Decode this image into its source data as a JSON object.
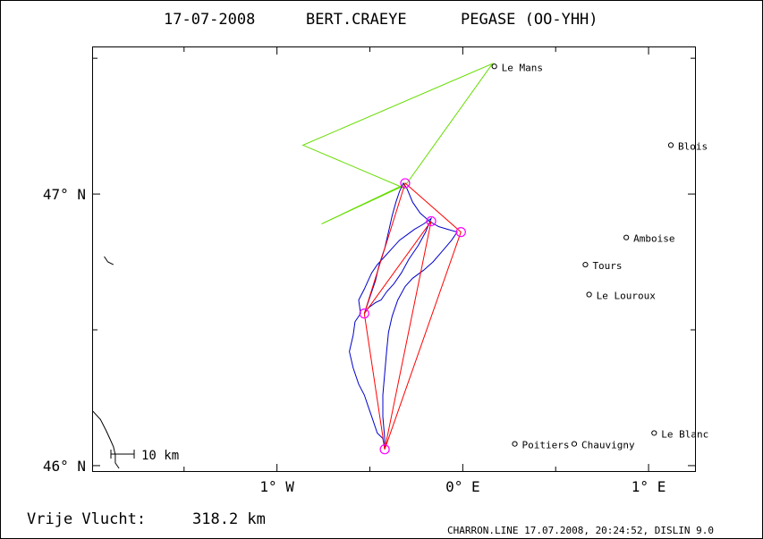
{
  "title": {
    "date": "17-07-2008",
    "pilot": "BERT.CRAEYE",
    "glider": "PEGASE (OO-YHH)"
  },
  "axes": {
    "y_ticks": [
      {
        "lat": 47.0,
        "label": "47° N"
      },
      {
        "lat": 46.0,
        "label": "46° N"
      }
    ],
    "x_ticks": [
      {
        "lon": -1.0,
        "label": "1° W"
      },
      {
        "lon": 0.0,
        "label": "0° E"
      },
      {
        "lon": 1.0,
        "label": "1° E"
      }
    ],
    "lon_range": [
      -1.99,
      1.25
    ],
    "lat_range": [
      45.98,
      47.54
    ]
  },
  "scale_bar": {
    "label": "10 km"
  },
  "distance": {
    "label": "Vrije Vlucht:",
    "value": "318.2 km"
  },
  "footer": "CHARRON.LINE 17.07.2008, 20:24:52, DISLIN 9.0",
  "cities": [
    {
      "name": "Le Mans",
      "lon": 0.17,
      "lat": 47.47
    },
    {
      "name": "Blois",
      "lon": 1.12,
      "lat": 47.18
    },
    {
      "name": "Amboise",
      "lon": 0.88,
      "lat": 46.84
    },
    {
      "name": "Tours",
      "lon": 0.66,
      "lat": 46.74
    },
    {
      "name": "Le Louroux",
      "lon": 0.68,
      "lat": 46.63
    },
    {
      "name": "Poitiers",
      "lon": 0.28,
      "lat": 46.08
    },
    {
      "name": "Chauvigny",
      "lon": 0.6,
      "lat": 46.08
    },
    {
      "name": "Le Blanc",
      "lon": 1.03,
      "lat": 46.12
    }
  ],
  "colors": {
    "track": "#0000cc",
    "triangle": "#ff0000",
    "declared": "#66dd00",
    "turnpoint": "#ff00ff",
    "coast": "#000000",
    "frame": "#000000"
  },
  "turnpoints": [
    {
      "lon": -0.42,
      "lat": 46.06
    },
    {
      "lon": -0.53,
      "lat": 46.56
    },
    {
      "lon": -0.31,
      "lat": 47.04
    },
    {
      "lon": -0.17,
      "lat": 46.9
    },
    {
      "lon": -0.01,
      "lat": 46.86
    }
  ],
  "triangle_route": [
    {
      "lon": -0.42,
      "lat": 46.06
    },
    {
      "lon": -0.53,
      "lat": 46.56
    },
    {
      "lon": -0.31,
      "lat": 47.04
    },
    {
      "lon": -0.01,
      "lat": 46.86
    },
    {
      "lon": -0.42,
      "lat": 46.06
    },
    {
      "lon": -0.17,
      "lat": 46.9
    },
    {
      "lon": -0.53,
      "lat": 46.56
    }
  ],
  "declared_route": [
    {
      "lon": -0.32,
      "lat": 47.03
    },
    {
      "lon": -0.76,
      "lat": 46.89
    },
    {
      "lon": -0.3,
      "lat": 47.04
    },
    {
      "lon": 0.16,
      "lat": 47.48
    },
    {
      "lon": -0.86,
      "lat": 47.18
    },
    {
      "lon": -0.31,
      "lat": 47.02
    }
  ],
  "track": [
    {
      "lon": -0.42,
      "lat": 46.06
    },
    {
      "lon": -0.43,
      "lat": 46.1
    },
    {
      "lon": -0.46,
      "lat": 46.12
    },
    {
      "lon": -0.49,
      "lat": 46.18
    },
    {
      "lon": -0.51,
      "lat": 46.22
    },
    {
      "lon": -0.53,
      "lat": 46.26
    },
    {
      "lon": -0.56,
      "lat": 46.3
    },
    {
      "lon": -0.59,
      "lat": 46.36
    },
    {
      "lon": -0.61,
      "lat": 46.42
    },
    {
      "lon": -0.59,
      "lat": 46.48
    },
    {
      "lon": -0.58,
      "lat": 46.53
    },
    {
      "lon": -0.55,
      "lat": 46.56
    },
    {
      "lon": -0.56,
      "lat": 46.61
    },
    {
      "lon": -0.53,
      "lat": 46.65
    },
    {
      "lon": -0.51,
      "lat": 46.68
    },
    {
      "lon": -0.49,
      "lat": 46.71
    },
    {
      "lon": -0.46,
      "lat": 46.74
    },
    {
      "lon": -0.42,
      "lat": 46.77
    },
    {
      "lon": -0.38,
      "lat": 46.8
    },
    {
      "lon": -0.34,
      "lat": 46.83
    },
    {
      "lon": -0.3,
      "lat": 46.85
    },
    {
      "lon": -0.26,
      "lat": 46.87
    },
    {
      "lon": -0.21,
      "lat": 46.89
    },
    {
      "lon": -0.17,
      "lat": 46.91
    },
    {
      "lon": -0.2,
      "lat": 46.86
    },
    {
      "lon": -0.24,
      "lat": 46.81
    },
    {
      "lon": -0.29,
      "lat": 46.76
    },
    {
      "lon": -0.33,
      "lat": 46.71
    },
    {
      "lon": -0.37,
      "lat": 46.67
    },
    {
      "lon": -0.41,
      "lat": 46.64
    },
    {
      "lon": -0.44,
      "lat": 46.61
    },
    {
      "lon": -0.47,
      "lat": 46.6
    },
    {
      "lon": -0.51,
      "lat": 46.58
    },
    {
      "lon": -0.53,
      "lat": 46.56
    },
    {
      "lon": -0.5,
      "lat": 46.62
    },
    {
      "lon": -0.47,
      "lat": 46.68
    },
    {
      "lon": -0.45,
      "lat": 46.74
    },
    {
      "lon": -0.42,
      "lat": 46.8
    },
    {
      "lon": -0.4,
      "lat": 46.86
    },
    {
      "lon": -0.38,
      "lat": 46.92
    },
    {
      "lon": -0.36,
      "lat": 46.97
    },
    {
      "lon": -0.34,
      "lat": 47.01
    },
    {
      "lon": -0.32,
      "lat": 47.04
    },
    {
      "lon": -0.3,
      "lat": 47.02
    },
    {
      "lon": -0.27,
      "lat": 46.97
    },
    {
      "lon": -0.23,
      "lat": 46.93
    },
    {
      "lon": -0.18,
      "lat": 46.9
    },
    {
      "lon": -0.13,
      "lat": 46.88
    },
    {
      "lon": -0.08,
      "lat": 46.87
    },
    {
      "lon": -0.03,
      "lat": 46.86
    },
    {
      "lon": -0.06,
      "lat": 46.83
    },
    {
      "lon": -0.11,
      "lat": 46.79
    },
    {
      "lon": -0.16,
      "lat": 46.75
    },
    {
      "lon": -0.21,
      "lat": 46.72
    },
    {
      "lon": -0.27,
      "lat": 46.69
    },
    {
      "lon": -0.31,
      "lat": 46.66
    },
    {
      "lon": -0.35,
      "lat": 46.61
    },
    {
      "lon": -0.38,
      "lat": 46.55
    },
    {
      "lon": -0.4,
      "lat": 46.49
    },
    {
      "lon": -0.41,
      "lat": 46.42
    },
    {
      "lon": -0.42,
      "lat": 46.34
    },
    {
      "lon": -0.43,
      "lat": 46.26
    },
    {
      "lon": -0.43,
      "lat": 46.18
    },
    {
      "lon": -0.42,
      "lat": 46.1
    },
    {
      "lon": -0.42,
      "lat": 46.06
    }
  ],
  "coastline": [
    {
      "lon": -1.99,
      "lat": 46.2
    },
    {
      "lon": -1.95,
      "lat": 46.17
    },
    {
      "lon": -1.92,
      "lat": 46.13
    },
    {
      "lon": -1.9,
      "lat": 46.1
    },
    {
      "lon": -1.88,
      "lat": 46.07
    },
    {
      "lon": -1.87,
      "lat": 46.04
    },
    {
      "lon": -1.87,
      "lat": 46.01
    },
    {
      "lon": -1.85,
      "lat": 45.99
    }
  ],
  "island": [
    {
      "lon": -1.93,
      "lat": 46.77
    },
    {
      "lon": -1.91,
      "lat": 46.75
    },
    {
      "lon": -1.88,
      "lat": 46.74
    }
  ]
}
